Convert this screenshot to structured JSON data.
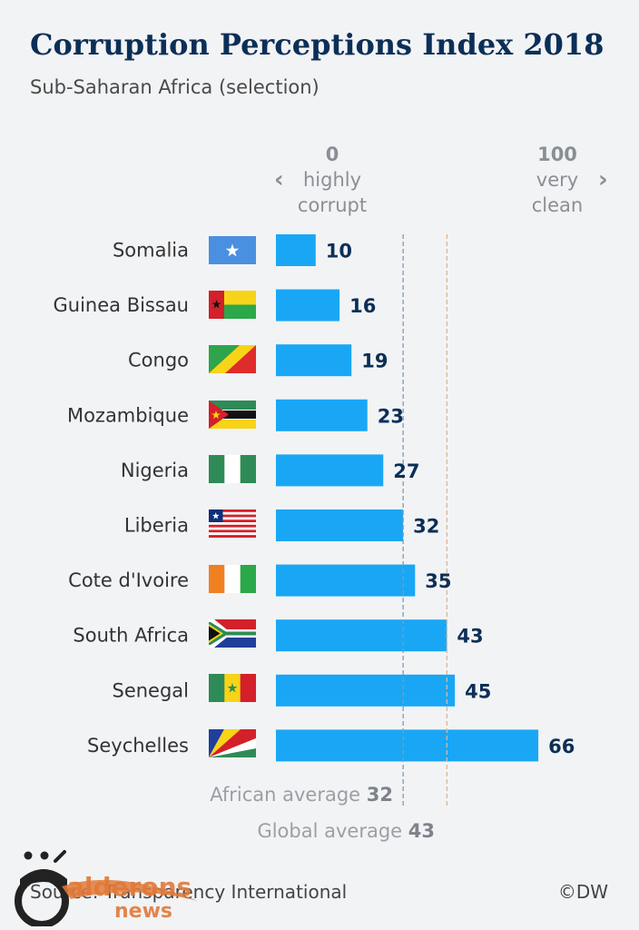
{
  "header": {
    "title": "Corruption Perceptions Index 2018",
    "subtitle": "Sub-Saharan Africa (selection)"
  },
  "scale": {
    "min_value": "0",
    "min_text_1": "highly",
    "min_text_2": "corrupt",
    "max_value": "100",
    "max_text_1": "very",
    "max_text_2": "clean"
  },
  "chart_data": {
    "type": "bar",
    "orientation": "horizontal",
    "categories": [
      "Somalia",
      "Guinea Bissau",
      "Congo",
      "Mozambique",
      "Nigeria",
      "Liberia",
      "Cote d'Ivoire",
      "South Africa",
      "Senegal",
      "Seychelles"
    ],
    "values": [
      10,
      16,
      19,
      23,
      27,
      32,
      35,
      43,
      45,
      66
    ],
    "xlim": [
      0,
      100
    ],
    "bar_color": "#19a7f5",
    "reference_lines": [
      {
        "label": "African average",
        "value": 32,
        "color": "#7f9bb3"
      },
      {
        "label": "Global average",
        "value": 43,
        "color": "#d9b89a"
      }
    ]
  },
  "flags": [
    "somalia-flag-icon",
    "guinea-bissau-flag-icon",
    "congo-flag-icon",
    "mozambique-flag-icon",
    "nigeria-flag-icon",
    "liberia-flag-icon",
    "cote-divoire-flag-icon",
    "south-africa-flag-icon",
    "senegal-flag-icon",
    "seychelles-flag-icon"
  ],
  "averages": {
    "african_label": "African average",
    "african_value": "32",
    "global_label": "Global average",
    "global_value": "43"
  },
  "footer": {
    "source": "Source: Transparency International",
    "copyright": "©DW",
    "watermark": "alderons news"
  }
}
